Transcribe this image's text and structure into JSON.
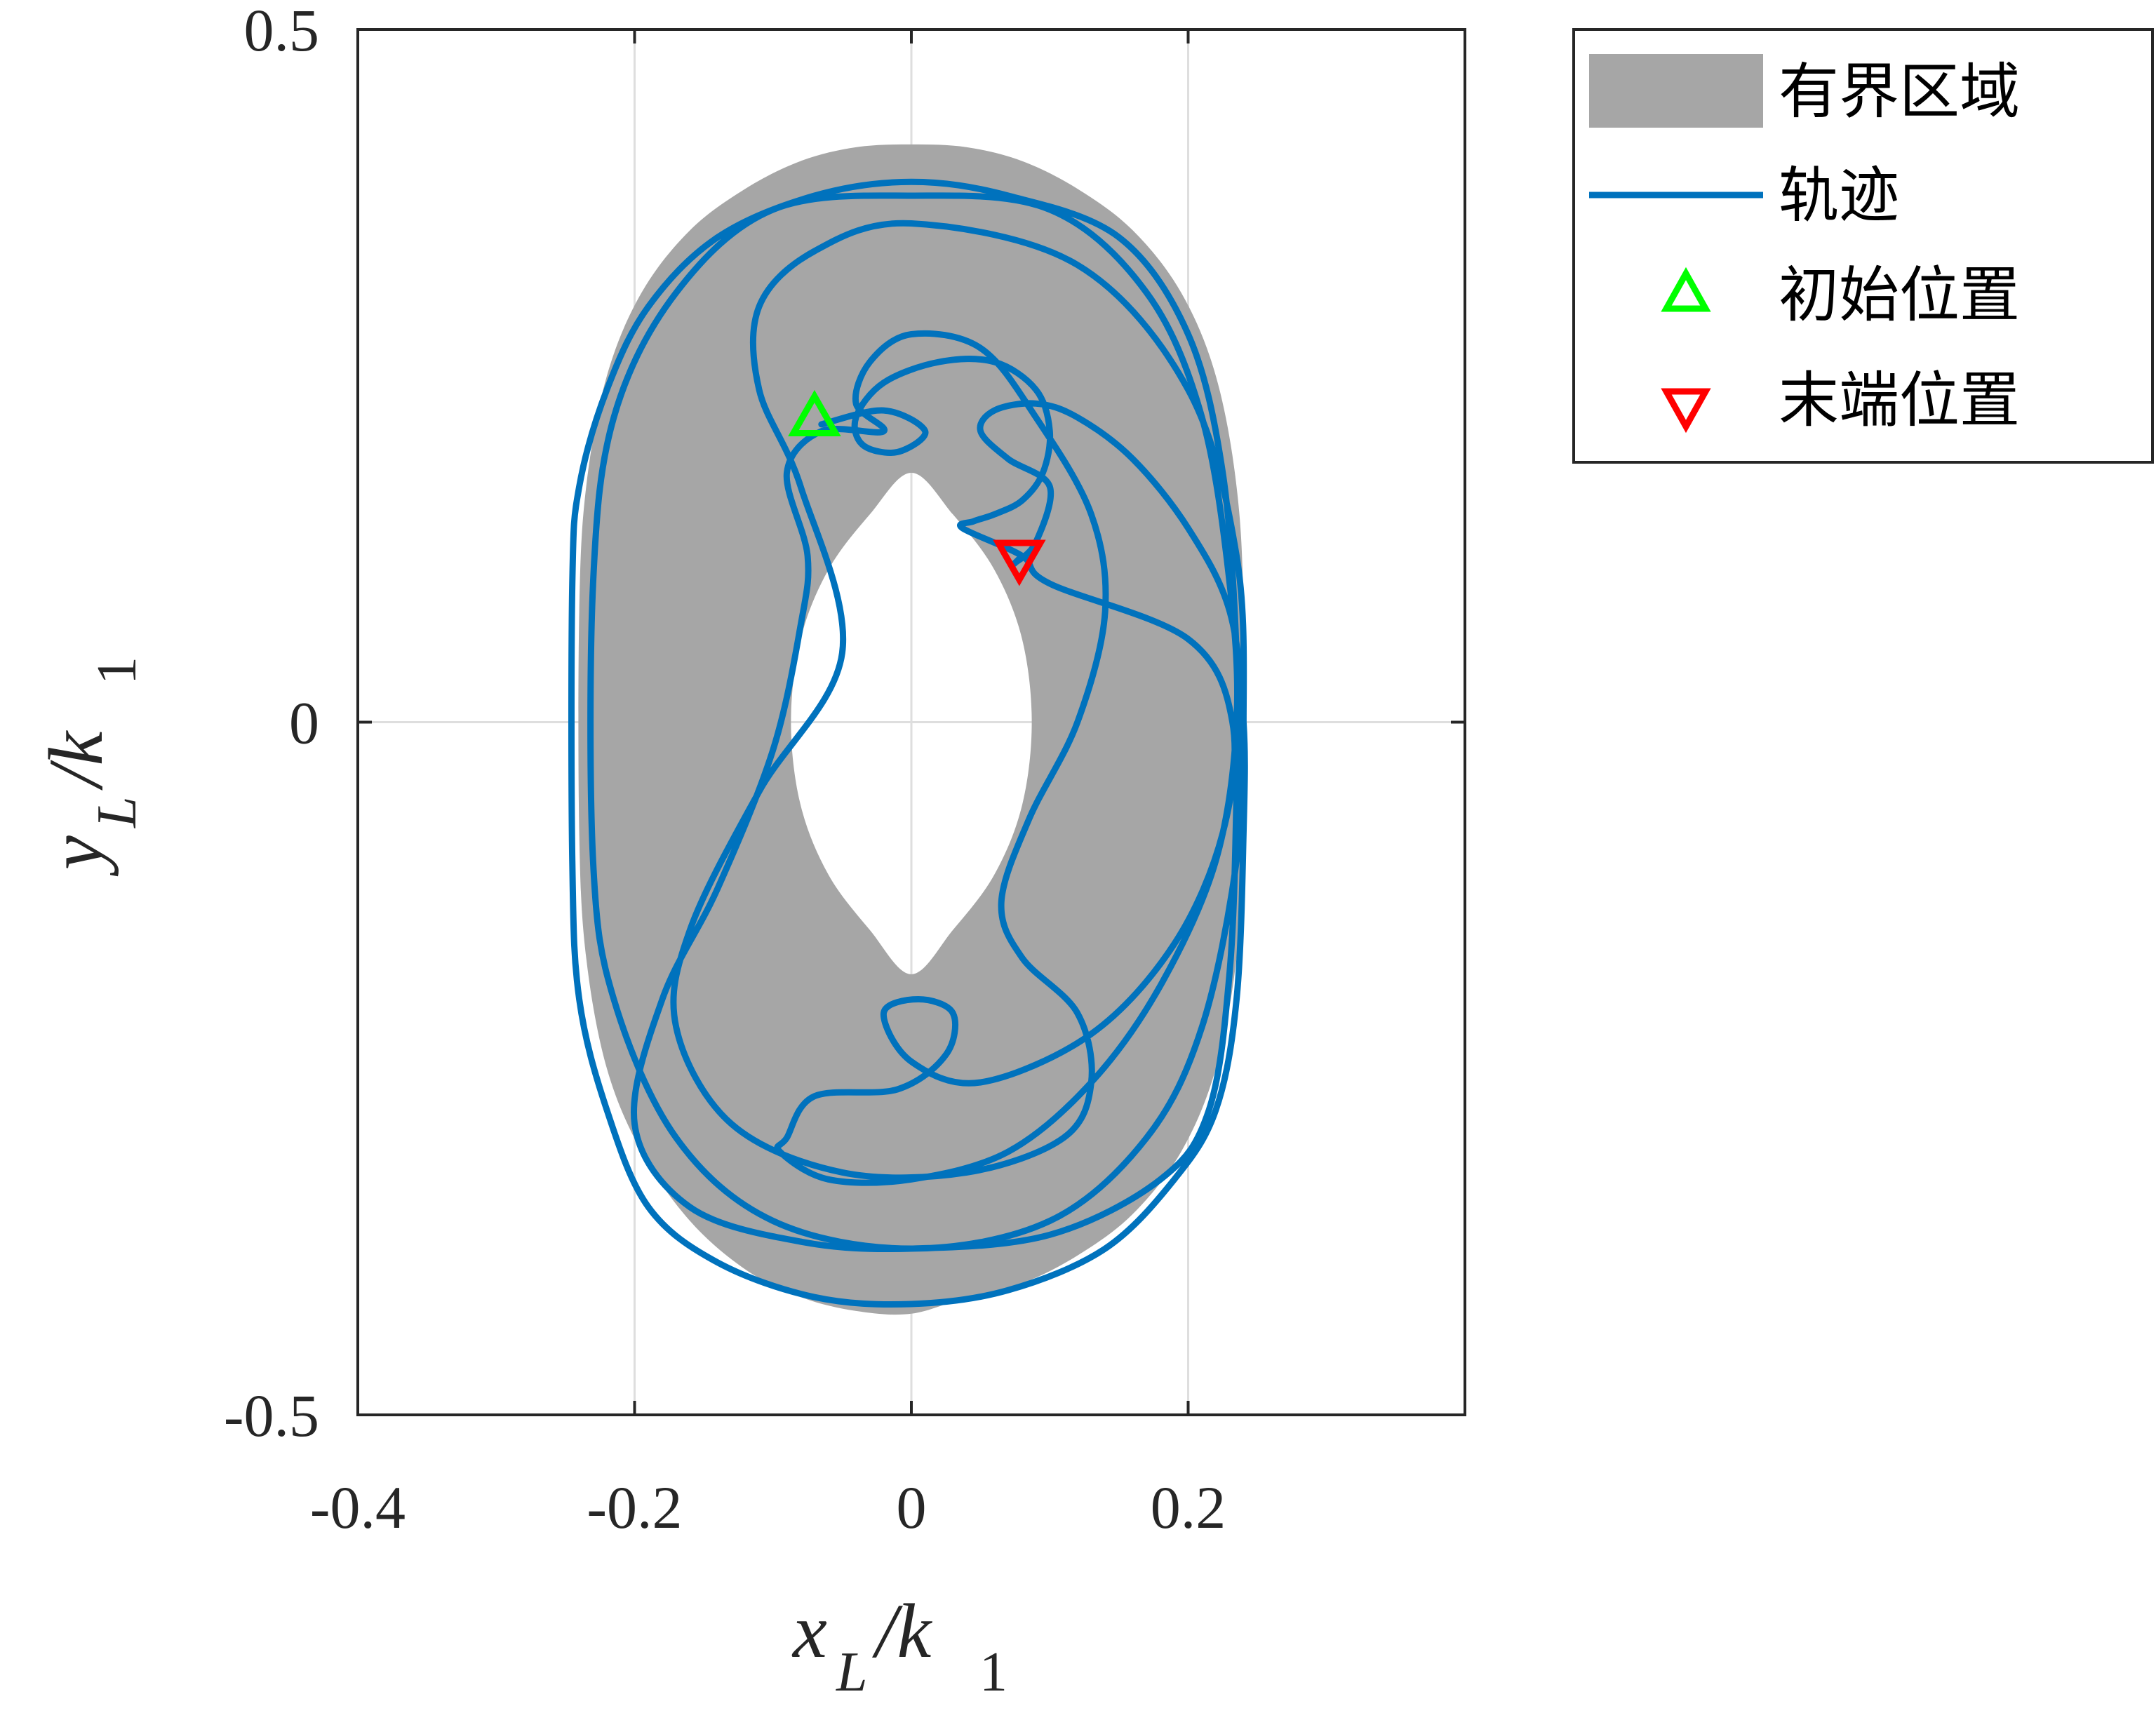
{
  "chart_data": {
    "type": "line",
    "x_axis": {
      "label_main": "x",
      "label_sub": "L",
      "label_rest": "/k",
      "label_rest_sub": "1",
      "range": [
        -0.4,
        0.4
      ],
      "ticks": [
        -0.4,
        -0.2,
        0,
        0.2
      ],
      "tick_labels": [
        "-0.4",
        "-0.2",
        "0",
        "0.2"
      ]
    },
    "y_axis": {
      "label_main": "y",
      "label_sub": "L",
      "label_rest": "/k",
      "label_rest_sub": "1",
      "range": [
        -0.5,
        0.5
      ],
      "ticks": [
        -0.5,
        0,
        0.5
      ],
      "tick_labels": [
        "-0.5",
        "0",
        "0.5"
      ]
    },
    "grid": true,
    "legend_position": "outside-top-right",
    "legend": [
      {
        "key": "region",
        "label": "有界区域",
        "color": "#a6a6a6",
        "marker": "patch"
      },
      {
        "key": "trajectory",
        "label": "轨迹",
        "color": "#0072bd",
        "marker": "line"
      },
      {
        "key": "start",
        "label": "初始位置",
        "color": "#00ff00",
        "marker": "triangle-up"
      },
      {
        "key": "end",
        "label": "末端位置",
        "color": "#ff0000",
        "marker": "triangle-down"
      }
    ],
    "bounded_region": {
      "outer": [
        [
          0,
          0.417
        ],
        [
          0.04,
          0.415
        ],
        [
          0.08,
          0.405
        ],
        [
          0.12,
          0.385
        ],
        [
          0.16,
          0.355
        ],
        [
          0.195,
          0.31
        ],
        [
          0.22,
          0.25
        ],
        [
          0.235,
          0.17
        ],
        [
          0.24,
          0.08
        ],
        [
          0.24,
          -0.08
        ],
        [
          0.235,
          -0.17
        ],
        [
          0.22,
          -0.25
        ],
        [
          0.195,
          -0.31
        ],
        [
          0.16,
          -0.355
        ],
        [
          0.12,
          -0.385
        ],
        [
          0.08,
          -0.405
        ],
        [
          0.04,
          -0.415
        ],
        [
          0,
          -0.427
        ],
        [
          -0.04,
          -0.425
        ],
        [
          -0.08,
          -0.415
        ],
        [
          -0.12,
          -0.395
        ],
        [
          -0.16,
          -0.36
        ],
        [
          -0.195,
          -0.31
        ],
        [
          -0.22,
          -0.25
        ],
        [
          -0.235,
          -0.17
        ],
        [
          -0.24,
          -0.08
        ],
        [
          -0.24,
          0.08
        ],
        [
          -0.235,
          0.17
        ],
        [
          -0.22,
          0.25
        ],
        [
          -0.195,
          0.31
        ],
        [
          -0.16,
          0.355
        ],
        [
          -0.12,
          0.385
        ],
        [
          -0.08,
          0.405
        ],
        [
          -0.04,
          0.415
        ]
      ],
      "inner": [
        [
          0,
          0.18
        ],
        [
          0.03,
          0.15
        ],
        [
          0.06,
          0.11
        ],
        [
          0.08,
          0.06
        ],
        [
          0.087,
          0
        ],
        [
          0.08,
          -0.06
        ],
        [
          0.06,
          -0.11
        ],
        [
          0.03,
          -0.15
        ],
        [
          0,
          -0.182
        ],
        [
          -0.03,
          -0.15
        ],
        [
          -0.06,
          -0.11
        ],
        [
          -0.08,
          -0.06
        ],
        [
          -0.087,
          0
        ],
        [
          -0.08,
          0.06
        ],
        [
          -0.06,
          0.11
        ],
        [
          -0.03,
          0.15
        ]
      ]
    },
    "trajectory": [
      [
        -0.065,
        0.215
      ],
      [
        -0.02,
        0.225
      ],
      [
        0.01,
        0.21
      ],
      [
        -0.01,
        0.195
      ],
      [
        -0.035,
        0.2
      ],
      [
        -0.04,
        0.22
      ],
      [
        -0.02,
        0.245
      ],
      [
        0.02,
        0.26
      ],
      [
        0.06,
        0.26
      ],
      [
        0.09,
        0.24
      ],
      [
        0.1,
        0.21
      ],
      [
        0.095,
        0.18
      ],
      [
        0.08,
        0.16
      ],
      [
        0.06,
        0.15
      ],
      [
        0.045,
        0.145
      ],
      [
        0.037,
        0.14
      ],
      [
        0.08,
        0.12
      ],
      [
        0.1,
        0.1
      ],
      [
        0.2,
        0.06
      ],
      [
        0.232,
        0
      ],
      [
        0.225,
        -0.08
      ],
      [
        0.19,
        -0.16
      ],
      [
        0.13,
        -0.225
      ],
      [
        0.05,
        -0.26
      ],
      [
        0,
        -0.245
      ],
      [
        -0.02,
        -0.21
      ],
      [
        0.005,
        -0.2
      ],
      [
        0.03,
        -0.21
      ],
      [
        0.025,
        -0.24
      ],
      [
        -0.01,
        -0.265
      ],
      [
        -0.07,
        -0.27
      ],
      [
        -0.09,
        -0.3
      ],
      [
        -0.095,
        -0.31
      ],
      [
        -0.06,
        -0.33
      ],
      [
        0,
        -0.33
      ],
      [
        0.07,
        -0.31
      ],
      [
        0.13,
        -0.26
      ],
      [
        0.18,
        -0.19
      ],
      [
        0.22,
        -0.1
      ],
      [
        0.235,
        0
      ],
      [
        0.23,
        0.1
      ],
      [
        0.21,
        0.22
      ],
      [
        0.17,
        0.31
      ],
      [
        0.1,
        0.37
      ],
      [
        0,
        0.38
      ],
      [
        -0.1,
        0.37
      ],
      [
        -0.17,
        0.31
      ],
      [
        -0.215,
        0.22
      ],
      [
        -0.23,
        0.1
      ],
      [
        -0.23,
        -0.1
      ],
      [
        -0.215,
        -0.2
      ],
      [
        -0.17,
        -0.3
      ],
      [
        -0.1,
        -0.36
      ],
      [
        0,
        -0.38
      ],
      [
        0.1,
        -0.36
      ],
      [
        0.17,
        -0.3
      ],
      [
        0.21,
        -0.22
      ],
      [
        0.235,
        -0.1
      ],
      [
        0.24,
        0
      ],
      [
        0.235,
        0.12
      ],
      [
        0.2,
        0.24
      ],
      [
        0.12,
        0.33
      ],
      [
        0,
        0.36
      ],
      [
        -0.07,
        0.34
      ],
      [
        -0.11,
        0.3
      ],
      [
        -0.11,
        0.24
      ],
      [
        -0.08,
        0.17
      ],
      [
        -0.05,
        0.05
      ],
      [
        -0.11,
        -0.05
      ],
      [
        -0.16,
        -0.15
      ],
      [
        -0.17,
        -0.22
      ],
      [
        -0.13,
        -0.29
      ],
      [
        -0.05,
        -0.325
      ],
      [
        0.04,
        -0.325
      ],
      [
        0.11,
        -0.3
      ],
      [
        0.13,
        -0.26
      ],
      [
        0.12,
        -0.21
      ],
      [
        0.08,
        -0.17
      ],
      [
        0.065,
        -0.13
      ],
      [
        0.085,
        -0.07
      ],
      [
        0.12,
        0
      ],
      [
        0.14,
        0.08
      ],
      [
        0.13,
        0.15
      ],
      [
        0.09,
        0.22
      ],
      [
        0.05,
        0.27
      ],
      [
        0,
        0.28
      ],
      [
        -0.03,
        0.26
      ],
      [
        -0.04,
        0.23
      ],
      [
        -0.02,
        0.21
      ],
      [
        -0.065,
        0.21
      ],
      [
        -0.09,
        0.18
      ],
      [
        -0.075,
        0.12
      ],
      [
        -0.08,
        0.07
      ],
      [
        -0.1,
        -0.02
      ],
      [
        -0.14,
        -0.12
      ],
      [
        -0.18,
        -0.2
      ],
      [
        -0.2,
        -0.29
      ],
      [
        -0.16,
        -0.35
      ],
      [
        -0.08,
        -0.375
      ],
      [
        0,
        -0.38
      ],
      [
        0.1,
        -0.37
      ],
      [
        0.18,
        -0.33
      ],
      [
        0.215,
        -0.28
      ],
      [
        0.23,
        -0.18
      ],
      [
        0.235,
        -0.05
      ],
      [
        0.235,
        0.05
      ],
      [
        0.225,
        0.18
      ],
      [
        0.2,
        0.28
      ],
      [
        0.15,
        0.35
      ],
      [
        0.07,
        0.38
      ],
      [
        0,
        0.39
      ],
      [
        -0.07,
        0.38
      ],
      [
        -0.14,
        0.35
      ],
      [
        -0.19,
        0.3
      ],
      [
        -0.22,
        0.24
      ],
      [
        -0.24,
        0.17
      ],
      [
        -0.245,
        0.1
      ],
      [
        -0.245,
        -0.1
      ],
      [
        -0.24,
        -0.2
      ],
      [
        -0.22,
        -0.28
      ],
      [
        -0.19,
        -0.35
      ],
      [
        -0.14,
        -0.39
      ],
      [
        -0.07,
        -0.415
      ],
      [
        0,
        -0.42
      ],
      [
        0.07,
        -0.41
      ],
      [
        0.14,
        -0.38
      ],
      [
        0.19,
        -0.33
      ],
      [
        0.22,
        -0.28
      ],
      [
        0.235,
        -0.2
      ],
      [
        0.24,
        -0.08
      ],
      [
        0.24,
        0
      ],
      [
        0.23,
        0.08
      ],
      [
        0.2,
        0.14
      ],
      [
        0.16,
        0.19
      ],
      [
        0.12,
        0.22
      ],
      [
        0.09,
        0.23
      ],
      [
        0.06,
        0.225
      ],
      [
        0.05,
        0.21
      ],
      [
        0.07,
        0.19
      ],
      [
        0.1,
        0.17
      ],
      [
        0.09,
        0.13
      ],
      [
        0.075,
        0.115
      ],
      [
        0.078,
        0.118
      ]
    ],
    "start_point": [
      -0.07,
      0.22
    ],
    "end_point": [
      0.078,
      0.118
    ]
  }
}
